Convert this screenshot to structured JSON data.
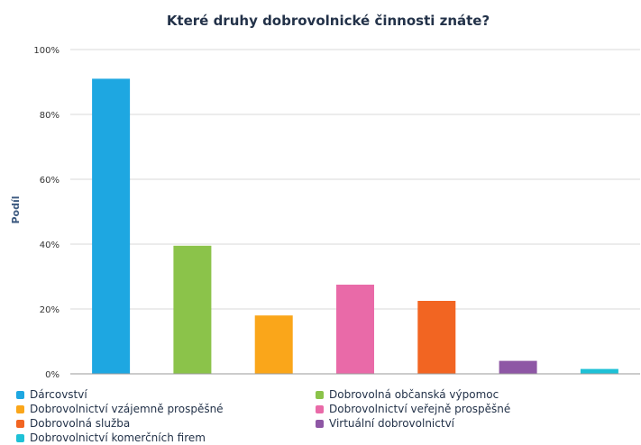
{
  "chart_data": {
    "type": "bar",
    "title": "Které druhy dobrovolnické činnosti znáte?",
    "ylabel": "Podíl",
    "xlabel": "",
    "ylim": [
      0,
      100
    ],
    "y_ticks": [
      "0%",
      "20%",
      "40%",
      "60%",
      "80%",
      "100%"
    ],
    "y_tick_values": [
      0,
      20,
      40,
      60,
      80,
      100
    ],
    "grid": true,
    "legend_position": "bottom",
    "categories": [
      "Dárcovství",
      "Dobrovolná občanská výpomoc",
      "Dobrovolnictví vzájemně prospěšné",
      "Dobrovolnictví veřejně prospěšné",
      "Dobrovolná služba",
      "Virtuální dobrovolnictví",
      "Dobrovolnictví komerčních firem"
    ],
    "values": [
      91,
      39.5,
      18,
      27.5,
      22.5,
      4,
      1.5
    ],
    "colors": [
      "#1ea7e1",
      "#8bc34a",
      "#faa61a",
      "#e96aa8",
      "#f26522",
      "#8e57a5",
      "#1ec1d6"
    ]
  }
}
